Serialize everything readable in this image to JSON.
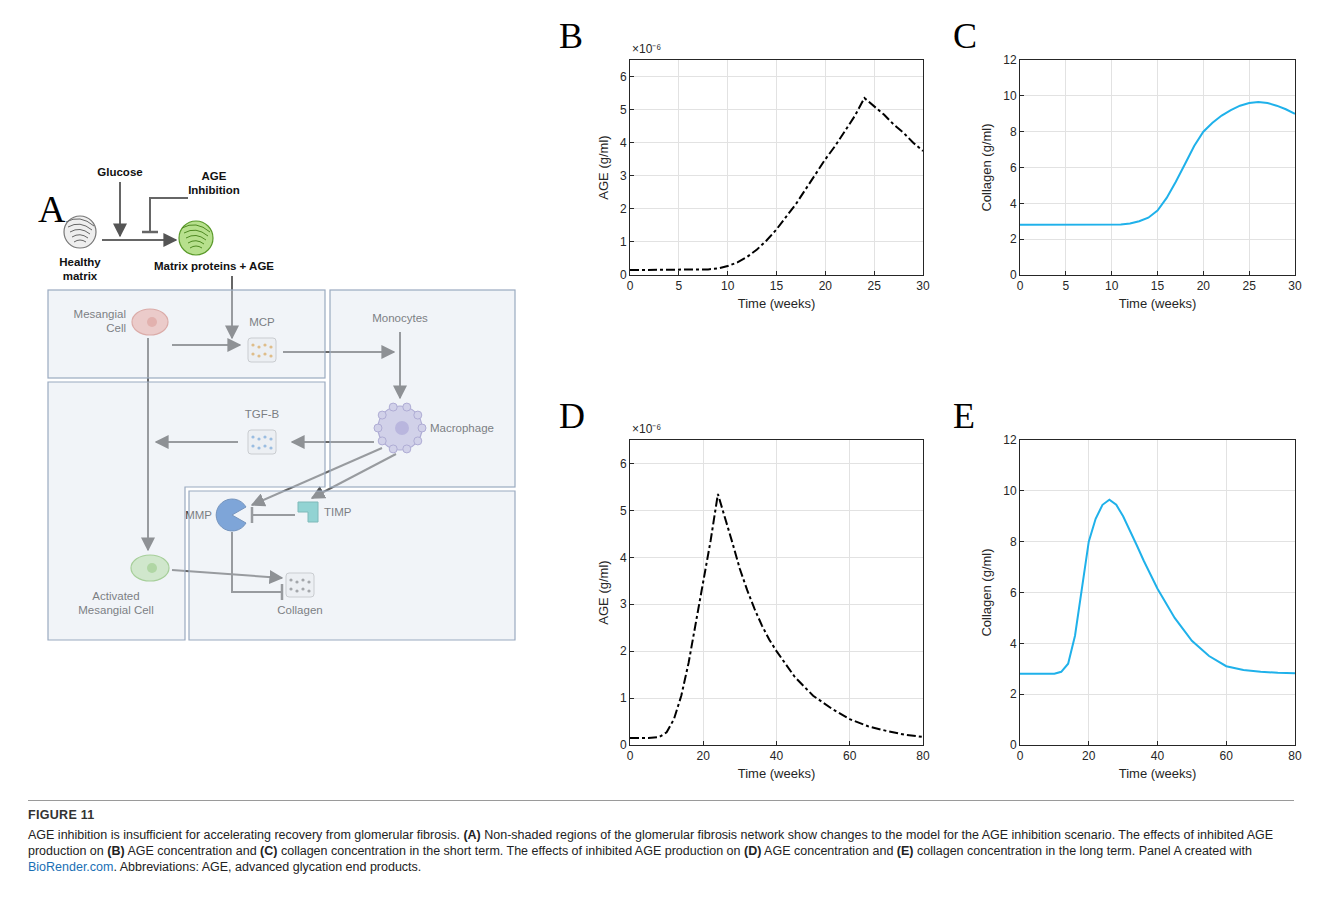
{
  "chart_data": [
    {
      "type": "line",
      "title": "B",
      "x_label": "Time (weeks)",
      "y_label": "AGE (g/ml)",
      "annotations": [
        "×10⁻⁶"
      ],
      "x": [
        0,
        1,
        2,
        3,
        4,
        5,
        6,
        7,
        8,
        9,
        10,
        11,
        12,
        13,
        14,
        15,
        16,
        17,
        18,
        19,
        20,
        21,
        22,
        23,
        24,
        25,
        26,
        27,
        28,
        29,
        30
      ],
      "values": [
        1.5e-07,
        1.5e-07,
        1.5e-07,
        1.5e-07,
        1.5e-07,
        1.5e-07,
        1.5e-07,
        1.5e-07,
        1.7e-07,
        2e-07,
        2.7e-07,
        3.8e-07,
        5.5e-07,
        7.7e-07,
        1.05e-06,
        1.38e-06,
        1.75e-06,
        2.15e-06,
        2.6e-06,
        3.05e-06,
        3.5e-06,
        3.9e-06,
        4.35e-06,
        4.8e-06,
        5.35e-06,
        5.1e-06,
        4.85e-06,
        4.55e-06,
        4.3e-06,
        4e-06,
        3.75e-06
      ],
      "color": "#000000",
      "line_style": "dashdot",
      "xlim": [
        0,
        30
      ],
      "xticks": [
        0,
        5,
        10,
        15,
        20,
        25,
        30
      ],
      "ylim": [
        0,
        6.5e-06
      ],
      "yticks": [
        0,
        {
          "value": 1e-06,
          "label": "1"
        },
        {
          "value": 2e-06,
          "label": "2"
        },
        {
          "value": 3e-06,
          "label": "3"
        },
        {
          "value": 4e-06,
          "label": "4"
        },
        {
          "value": 5e-06,
          "label": "5"
        },
        {
          "value": 6e-06,
          "label": "6"
        }
      ],
      "grid": true
    },
    {
      "type": "line",
      "title": "C",
      "x_label": "Time (weeks)",
      "y_label": "Collagen (g/ml)",
      "x": [
        0,
        1,
        2,
        3,
        4,
        5,
        6,
        7,
        8,
        9,
        10,
        11,
        12,
        13,
        14,
        15,
        16,
        17,
        18,
        19,
        20,
        21,
        22,
        23,
        24,
        25,
        26,
        27,
        28,
        29,
        30
      ],
      "values": [
        2.8,
        2.8,
        2.8,
        2.8,
        2.8,
        2.8,
        2.8,
        2.8,
        2.8,
        2.8,
        2.8,
        2.82,
        2.88,
        3.0,
        3.2,
        3.6,
        4.3,
        5.2,
        6.2,
        7.2,
        8.0,
        8.5,
        8.9,
        9.2,
        9.45,
        9.6,
        9.65,
        9.6,
        9.45,
        9.25,
        9.0
      ],
      "color": "#1fb1ea",
      "line_style": "solid",
      "xlim": [
        0,
        30
      ],
      "xticks": [
        0,
        5,
        10,
        15,
        20,
        25,
        30
      ],
      "ylim": [
        0,
        12
      ],
      "yticks": [
        0,
        2,
        4,
        6,
        8,
        10,
        12
      ],
      "grid": true
    },
    {
      "type": "line",
      "title": "D",
      "x_label": "Time (weeks)",
      "y_label": "AGE (g/ml)",
      "annotations": [
        "×10⁻⁶"
      ],
      "x": [
        0,
        5,
        8,
        10,
        12,
        14,
        16,
        18,
        20,
        22,
        24,
        26,
        28,
        30,
        32,
        34,
        36,
        38,
        40,
        45,
        50,
        55,
        60,
        65,
        70,
        75,
        80
      ],
      "values": [
        1.5e-07,
        1.5e-07,
        1.7e-07,
        2.7e-07,
        5.5e-07,
        1.05e-06,
        1.75e-06,
        2.6e-06,
        3.5e-06,
        4.35e-06,
        5.35e-06,
        4.85e-06,
        4.3e-06,
        3.75e-06,
        3.3e-06,
        2.9e-06,
        2.55e-06,
        2.25e-06,
        2e-06,
        1.45e-06,
        1.05e-06,
        7.8e-07,
        5.5e-07,
        4e-07,
        3e-07,
        2.2e-07,
        1.7e-07
      ],
      "color": "#000000",
      "line_style": "dashdot",
      "xlim": [
        0,
        80
      ],
      "xticks": [
        0,
        20,
        40,
        60,
        80
      ],
      "ylim": [
        0,
        6.5e-06
      ],
      "yticks": [
        0,
        {
          "value": 1e-06,
          "label": "1"
        },
        {
          "value": 2e-06,
          "label": "2"
        },
        {
          "value": 3e-06,
          "label": "3"
        },
        {
          "value": 4e-06,
          "label": "4"
        },
        {
          "value": 5e-06,
          "label": "5"
        },
        {
          "value": 6e-06,
          "label": "6"
        }
      ],
      "grid": true
    },
    {
      "type": "line",
      "title": "E",
      "x_label": "Time (weeks)",
      "y_label": "Collagen (g/ml)",
      "x": [
        0,
        5,
        10,
        12,
        14,
        16,
        18,
        20,
        22,
        24,
        26,
        28,
        30,
        32,
        34,
        36,
        38,
        40,
        45,
        50,
        55,
        60,
        65,
        70,
        75,
        80
      ],
      "values": [
        2.8,
        2.8,
        2.8,
        2.88,
        3.2,
        4.3,
        6.2,
        8.0,
        8.9,
        9.45,
        9.65,
        9.45,
        9.0,
        8.45,
        7.85,
        7.25,
        6.7,
        6.15,
        5.0,
        4.1,
        3.5,
        3.1,
        2.95,
        2.88,
        2.84,
        2.82
      ],
      "color": "#1fb1ea",
      "line_style": "solid",
      "xlim": [
        0,
        80
      ],
      "xticks": [
        0,
        20,
        40,
        60,
        80
      ],
      "ylim": [
        0,
        12
      ],
      "yticks": [
        0,
        2,
        4,
        6,
        8,
        10,
        12
      ],
      "grid": true
    }
  ],
  "diagram": {
    "panel": "A",
    "nodes": [
      {
        "label": "Glucose"
      },
      {
        "label": "AGE Inhibition"
      },
      {
        "label": "Healthy matrix"
      },
      {
        "label": "Matrix proteins + AGE"
      },
      {
        "label": "Mesangial Cell"
      },
      {
        "label": "MCP"
      },
      {
        "label": "Monocytes"
      },
      {
        "label": "Macrophage"
      },
      {
        "label": "TGF-B"
      },
      {
        "label": "Activated Mesangial Cell"
      },
      {
        "label": "MMP"
      },
      {
        "label": "TIMP"
      },
      {
        "label": "Collagen"
      }
    ]
  },
  "caption": {
    "label": "FIGURE 11",
    "text": "AGE inhibition is insufficient for accelerating recovery from glomerular fibrosis. (A) Non-shaded regions of the glomerular fibrosis network show changes to the model for the AGE inhibition scenario. The effects of inhibited AGE production on (B) AGE concentration and (C) collagen concentration in the short term. The effects of inhibited AGE production on (D) AGE concentration and (E) collagen concentration in the long term. Panel A created with BioRender.com. Abbreviations: AGE, advanced glycation end products."
  }
}
